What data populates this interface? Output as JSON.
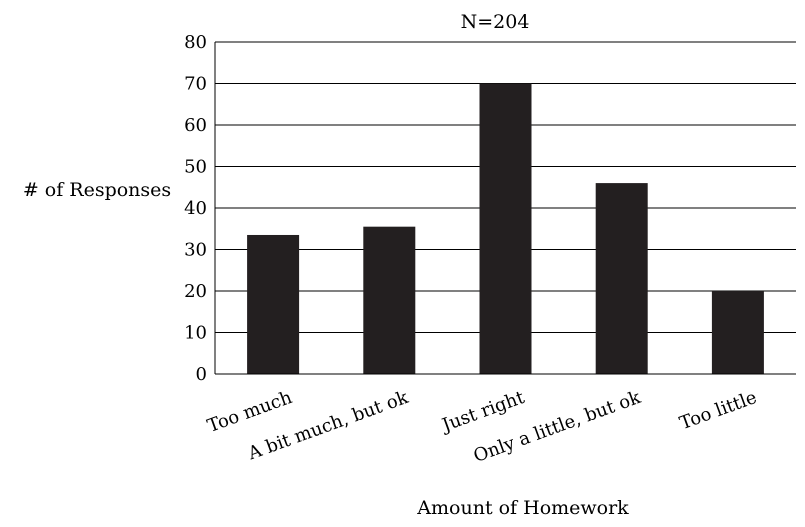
{
  "chart_data": {
    "type": "bar",
    "title": "N=204",
    "xlabel": "Amount of Homework",
    "ylabel": "# of Responses",
    "categories": [
      "Too much",
      "A bit much, but ok",
      "Just right",
      "Only a little, but ok",
      "Too little"
    ],
    "values": [
      33.5,
      35.5,
      70,
      46,
      20
    ],
    "ylim": [
      0,
      80
    ],
    "yticks": [
      0,
      10,
      20,
      30,
      40,
      50,
      60,
      70,
      80
    ],
    "grid": true,
    "bar_color": "#231f20"
  }
}
